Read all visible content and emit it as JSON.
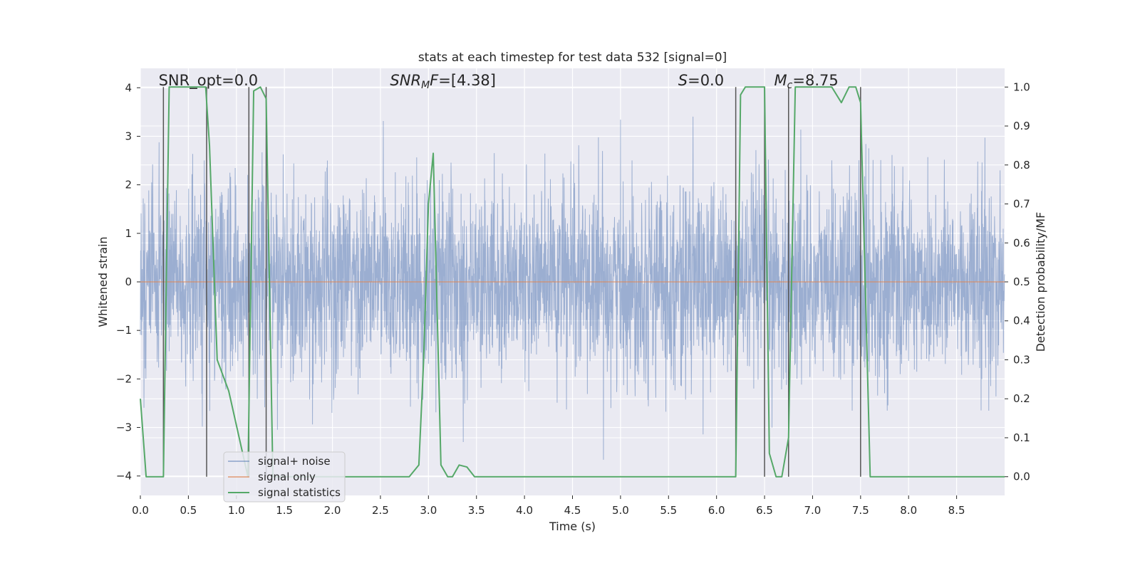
{
  "chart_data": {
    "type": "line",
    "title": "stats at each timestep for test data 532 [signal=0]",
    "xlabel": "Time (s)",
    "ylabel_left": "Whitened strain",
    "ylabel_right": "Detection probability/MF",
    "xlim": [
      0,
      9.0
    ],
    "ylim_left": [
      -4.4,
      4.4
    ],
    "ylim_right": [
      -0.048,
      1.048
    ],
    "x_ticks": [
      0.0,
      0.5,
      1.0,
      1.5,
      2.0,
      2.5,
      3.0,
      3.5,
      4.0,
      4.5,
      5.0,
      5.5,
      6.0,
      6.5,
      7.0,
      7.5,
      8.0,
      8.5
    ],
    "x_tick_labels": [
      "0.0",
      "0.5",
      "1.0",
      "1.5",
      "2.0",
      "2.5",
      "3.0",
      "3.5",
      "4.0",
      "4.5",
      "5.0",
      "5.5",
      "6.0",
      "6.5",
      "7.0",
      "7.5",
      "8.0",
      "8.5"
    ],
    "y_left_ticks": [
      4,
      3,
      2,
      1,
      0,
      -1,
      -2,
      -3,
      -4
    ],
    "y_left_tick_labels": [
      "4",
      "3",
      "2",
      "1",
      "0",
      "−1",
      "−2",
      "−3",
      "−4"
    ],
    "y_right_ticks": [
      1.0,
      0.9,
      0.8,
      0.7,
      0.6,
      0.5,
      0.4,
      0.3,
      0.2,
      0.1,
      0.0
    ],
    "y_right_tick_labels": [
      "1.0",
      "0.9",
      "0.8",
      "0.7",
      "0.6",
      "0.5",
      "0.4",
      "0.3",
      "0.2",
      "0.1",
      "0.0"
    ],
    "grid": true,
    "legend_position": "lower-left",
    "annotations": [
      {
        "text": "SNR_opt=0.0",
        "x": 0.19,
        "y": 4.15,
        "italic_part": ""
      },
      {
        "text_italic": "SNR",
        "sub": "M",
        "text_italic2": "F",
        "text": "=[4.38]",
        "x": 2.6,
        "y": 4.15
      },
      {
        "text_italic": "S",
        "text": "=0.0",
        "x": 5.6,
        "y": 4.15
      },
      {
        "text_italic": "M",
        "sub": "c",
        "text": "=8.75",
        "x": 6.6,
        "y": 4.15
      }
    ],
    "series": [
      {
        "name": "signal+ noise",
        "color": "#4c72b0",
        "kind": "noise",
        "std": 1.0,
        "x_range": [
          0,
          9.0
        ],
        "peak_max": 4.0,
        "peak_min": -4.0
      },
      {
        "name": "signal only",
        "color": "#dd8452",
        "kind": "constant",
        "value": 0.0
      },
      {
        "name": "signal statistics",
        "color": "#55a868",
        "kind": "line_right",
        "x": [
          0.0,
          0.06,
          0.24,
          0.3,
          0.68,
          0.72,
          0.8,
          0.92,
          1.12,
          1.18,
          1.25,
          1.31,
          1.38,
          2.8,
          2.9,
          2.95,
          3.0,
          3.05,
          3.13,
          3.2,
          3.25,
          3.32,
          3.4,
          3.48,
          6.2,
          6.25,
          6.3,
          6.5,
          6.55,
          6.62,
          6.68,
          6.75,
          6.82,
          6.9,
          7.2,
          7.3,
          7.38,
          7.45,
          7.5,
          7.6,
          9.0
        ],
        "y": [
          0.2,
          0.0,
          0.0,
          1.0,
          1.0,
          0.85,
          0.3,
          0.22,
          0.0,
          0.99,
          1.0,
          0.97,
          0.0,
          0.0,
          0.03,
          0.3,
          0.7,
          0.83,
          0.03,
          0.0,
          0.0,
          0.03,
          0.025,
          0.0,
          0.0,
          0.98,
          1.0,
          1.0,
          0.06,
          0.0,
          0.0,
          0.1,
          1.0,
          1.0,
          1.0,
          0.96,
          1.0,
          1.0,
          0.96,
          0.0,
          0.0
        ]
      },
      {
        "name": "markers",
        "color": "#555555",
        "kind": "vlines",
        "x": [
          0.24,
          0.69,
          1.13,
          1.31,
          6.2,
          6.5,
          6.75,
          7.5
        ],
        "y_range_right": [
          0.0,
          1.0
        ]
      }
    ],
    "legend": [
      "signal+ noise",
      "signal only",
      "signal statistics"
    ]
  }
}
